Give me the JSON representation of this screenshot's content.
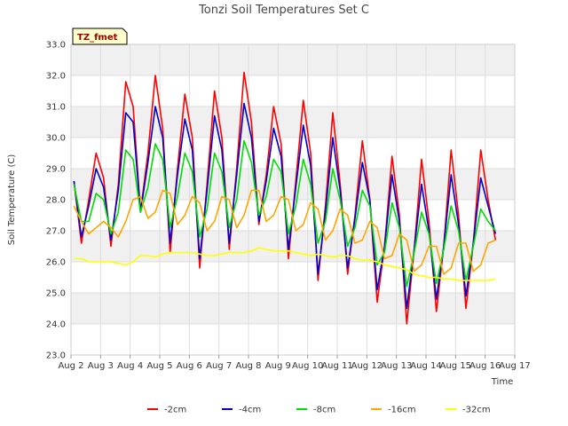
{
  "chart_data": {
    "type": "line",
    "title": "Tonzi Soil Temperatures Set C",
    "xlabel": "Time",
    "ylabel": "Soil Temperature (C)",
    "badge": "TZ_fmet",
    "x_ticks": [
      "Aug 2",
      "Aug 3",
      "Aug 4",
      "Aug 5",
      "Aug 6",
      "Aug 7",
      "Aug 8",
      "Aug 9",
      "Aug 10",
      "Aug 11",
      "Aug 12",
      "Aug 13",
      "Aug 14",
      "Aug 15",
      "Aug 16",
      "Aug 17"
    ],
    "xlim": [
      2,
      17
    ],
    "ylim": [
      23.0,
      33.0
    ],
    "y_ticks": [
      "23.0",
      "24.0",
      "25.0",
      "26.0",
      "27.0",
      "28.0",
      "29.0",
      "30.0",
      "31.0",
      "32.0",
      "33.0"
    ],
    "grid": true,
    "legend_position": "bottom",
    "x": [
      2.1,
      2.35,
      2.6,
      2.85,
      3.1,
      3.35,
      3.6,
      3.85,
      4.1,
      4.35,
      4.6,
      4.85,
      5.1,
      5.35,
      5.6,
      5.85,
      6.1,
      6.35,
      6.6,
      6.85,
      7.1,
      7.35,
      7.6,
      7.85,
      8.1,
      8.35,
      8.6,
      8.85,
      9.1,
      9.35,
      9.6,
      9.85,
      10.1,
      10.35,
      10.6,
      10.85,
      11.1,
      11.35,
      11.6,
      11.85,
      12.1,
      12.35,
      12.6,
      12.85,
      13.1,
      13.35,
      13.6,
      13.85,
      14.1,
      14.35,
      14.6,
      14.85,
      15.1,
      15.35,
      15.6,
      15.85,
      16.1,
      16.35
    ],
    "series": [
      {
        "name": "-2cm",
        "color": "#ff0000",
        "values": [
          28.6,
          26.6,
          28.0,
          29.5,
          28.7,
          26.5,
          28.5,
          31.8,
          31.0,
          27.6,
          29.5,
          32.0,
          30.3,
          26.3,
          29.0,
          31.4,
          30.0,
          25.8,
          28.5,
          31.5,
          30.0,
          26.4,
          29.0,
          32.1,
          30.5,
          27.2,
          28.8,
          31.0,
          29.8,
          26.1,
          28.6,
          31.2,
          29.5,
          25.4,
          27.8,
          30.8,
          28.5,
          25.6,
          27.5,
          29.9,
          28.0,
          24.7,
          26.5,
          29.4,
          27.5,
          24.0,
          26.4,
          29.3,
          27.3,
          24.4,
          26.5,
          29.6,
          27.5,
          24.5,
          26.6,
          29.6,
          28.0,
          26.7
        ]
      },
      {
        "name": "-4cm",
        "color": "#0000cc",
        "values": [
          28.6,
          26.8,
          27.8,
          29.0,
          28.4,
          26.7,
          28.3,
          30.8,
          30.5,
          27.6,
          29.2,
          31.0,
          30.0,
          26.6,
          28.8,
          30.6,
          29.6,
          26.1,
          28.3,
          30.7,
          29.6,
          26.6,
          28.8,
          31.1,
          30.0,
          27.3,
          28.6,
          30.3,
          29.4,
          26.4,
          28.4,
          30.4,
          29.1,
          25.6,
          27.6,
          30.0,
          28.3,
          25.8,
          27.4,
          29.2,
          28.0,
          25.1,
          26.5,
          28.8,
          27.3,
          24.5,
          26.4,
          28.5,
          27.0,
          24.8,
          26.5,
          28.8,
          27.2,
          24.9,
          26.6,
          28.7,
          27.8,
          26.9
        ]
      },
      {
        "name": "-8cm",
        "color": "#00dd00",
        "values": [
          28.5,
          27.3,
          27.3,
          28.2,
          28.0,
          26.9,
          27.6,
          29.6,
          29.3,
          27.6,
          28.4,
          29.8,
          29.3,
          27.1,
          28.1,
          29.5,
          28.9,
          26.8,
          27.7,
          29.5,
          28.9,
          27.1,
          28.0,
          29.9,
          29.2,
          27.5,
          28.1,
          29.3,
          28.9,
          26.9,
          27.8,
          29.3,
          28.5,
          26.6,
          27.3,
          29.0,
          28.0,
          26.5,
          27.1,
          28.3,
          27.8,
          25.9,
          26.3,
          27.9,
          27.1,
          25.2,
          26.3,
          27.6,
          26.9,
          25.3,
          26.4,
          27.8,
          27.0,
          25.4,
          26.5,
          27.7,
          27.3,
          27.0
        ]
      },
      {
        "name": "-16cm",
        "color": "#ffa500",
        "values": [
          27.8,
          27.3,
          26.9,
          27.1,
          27.3,
          27.1,
          26.8,
          27.3,
          28.0,
          28.1,
          27.4,
          27.6,
          28.3,
          28.2,
          27.2,
          27.5,
          28.1,
          27.9,
          27.0,
          27.3,
          28.1,
          28.0,
          27.1,
          27.5,
          28.3,
          28.3,
          27.3,
          27.5,
          28.1,
          28.0,
          27.0,
          27.2,
          27.9,
          27.7,
          26.7,
          27.0,
          27.7,
          27.5,
          26.6,
          26.7,
          27.3,
          27.1,
          26.1,
          26.2,
          26.9,
          26.7,
          25.7,
          25.9,
          26.5,
          26.5,
          25.6,
          25.8,
          26.6,
          26.6,
          25.7,
          25.9,
          26.6,
          26.7
        ]
      },
      {
        "name": "-32cm",
        "color": "#ffff00",
        "values": [
          26.1,
          26.1,
          26.0,
          26.0,
          26.0,
          26.0,
          25.95,
          25.9,
          26.0,
          26.2,
          26.2,
          26.15,
          26.25,
          26.3,
          26.3,
          26.3,
          26.3,
          26.25,
          26.2,
          26.2,
          26.25,
          26.3,
          26.3,
          26.3,
          26.35,
          26.45,
          26.4,
          26.35,
          26.35,
          26.35,
          26.3,
          26.25,
          26.2,
          26.25,
          26.2,
          26.15,
          26.2,
          26.2,
          26.1,
          26.05,
          26.05,
          26.0,
          25.9,
          25.85,
          25.8,
          25.75,
          25.6,
          25.55,
          25.5,
          25.5,
          25.45,
          25.45,
          25.4,
          25.4,
          25.4,
          25.4,
          25.4,
          25.45
        ]
      }
    ]
  }
}
